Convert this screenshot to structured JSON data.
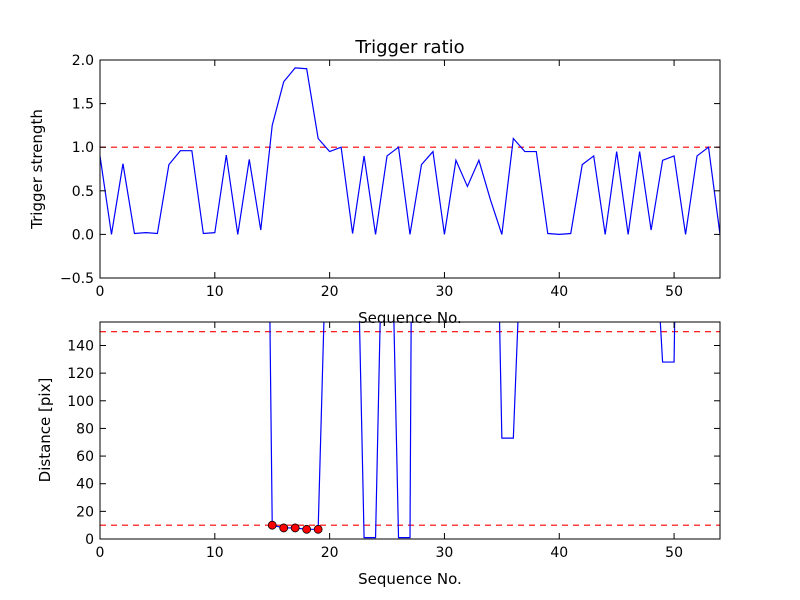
{
  "chart_data": [
    {
      "type": "line",
      "title": "Trigger ratio",
      "xlabel": "Sequence No.",
      "ylabel": "Trigger strength",
      "xlim": [
        0,
        54
      ],
      "ylim": [
        -0.5,
        2.0
      ],
      "xticks": [
        "0",
        "10",
        "20",
        "30",
        "40",
        "50"
      ],
      "yticks": [
        "−0.5",
        "0.0",
        "0.5",
        "1.0",
        "1.5",
        "2.0"
      ],
      "grid": false,
      "series": [
        {
          "color": "#0000ff",
          "x": [
            0,
            1,
            2,
            3,
            4,
            5,
            6,
            7,
            8,
            9,
            10,
            11,
            12,
            13,
            14,
            15,
            16,
            17,
            18,
            19,
            20,
            21,
            22,
            23,
            24,
            25,
            26,
            27,
            28,
            29,
            30,
            31,
            32,
            33,
            34,
            35,
            36,
            37,
            38,
            39,
            40,
            41,
            42,
            43,
            44,
            45,
            46,
            47,
            48,
            49,
            50,
            51,
            52,
            53,
            54
          ],
          "y": [
            0.9,
            0.0,
            0.81,
            0.01,
            0.02,
            0.01,
            0.8,
            0.96,
            0.96,
            0.01,
            0.02,
            0.91,
            0.0,
            0.86,
            0.05,
            1.25,
            1.75,
            1.91,
            1.9,
            1.1,
            0.95,
            1.0,
            0.01,
            0.9,
            0.0,
            0.9,
            1.0,
            0.0,
            0.8,
            0.95,
            0.0,
            0.85,
            0.55,
            0.85,
            0.4,
            0.0,
            1.1,
            0.95,
            0.95,
            0.01,
            0.0,
            0.01,
            0.8,
            0.9,
            0.0,
            0.95,
            0.0,
            0.95,
            0.05,
            0.85,
            0.9,
            0.0,
            0.9,
            1.0,
            0.0
          ]
        }
      ],
      "hlines": [
        {
          "y": 1.0,
          "color": "#ff0000",
          "style": "dashed"
        }
      ]
    },
    {
      "type": "line",
      "title": "",
      "xlabel": "Sequence No.",
      "ylabel": "Distance [pix]",
      "xlim": [
        0,
        54
      ],
      "ylim": [
        0,
        157
      ],
      "xticks": [
        "0",
        "10",
        "20",
        "30",
        "40",
        "50"
      ],
      "yticks": [
        "0",
        "20",
        "40",
        "60",
        "80",
        "100",
        "120",
        "140"
      ],
      "grid": false,
      "series": [
        {
          "color": "#0000ff",
          "segments": [
            {
              "x": [
                14.8,
                15,
                16,
                17,
                18,
                19,
                19.5
              ],
              "y": [
                157,
                10,
                8,
                8,
                7,
                7,
                157
              ]
            },
            {
              "x": [
                22.6,
                23,
                24,
                24.4
              ],
              "y": [
                157,
                1,
                1,
                157
              ]
            },
            {
              "x": [
                25.6,
                26,
                27,
                27.1
              ],
              "y": [
                157,
                1,
                1,
                157
              ]
            },
            {
              "x": [
                34.8,
                35,
                36,
                36.4
              ],
              "y": [
                157,
                73,
                73,
                157
              ]
            },
            {
              "x": [
                48.8,
                49,
                50,
                50.05
              ],
              "y": [
                157,
                128,
                128,
                157
              ]
            }
          ]
        },
        {
          "color": "#ff0000",
          "marker": "circle",
          "x": [
            15,
            16,
            17,
            18,
            19
          ],
          "y": [
            10,
            8,
            8,
            7,
            7
          ]
        }
      ],
      "hlines": [
        {
          "y": 150,
          "color": "#ff0000",
          "style": "dashed"
        },
        {
          "y": 10,
          "color": "#ff0000",
          "style": "dashed"
        }
      ]
    }
  ]
}
